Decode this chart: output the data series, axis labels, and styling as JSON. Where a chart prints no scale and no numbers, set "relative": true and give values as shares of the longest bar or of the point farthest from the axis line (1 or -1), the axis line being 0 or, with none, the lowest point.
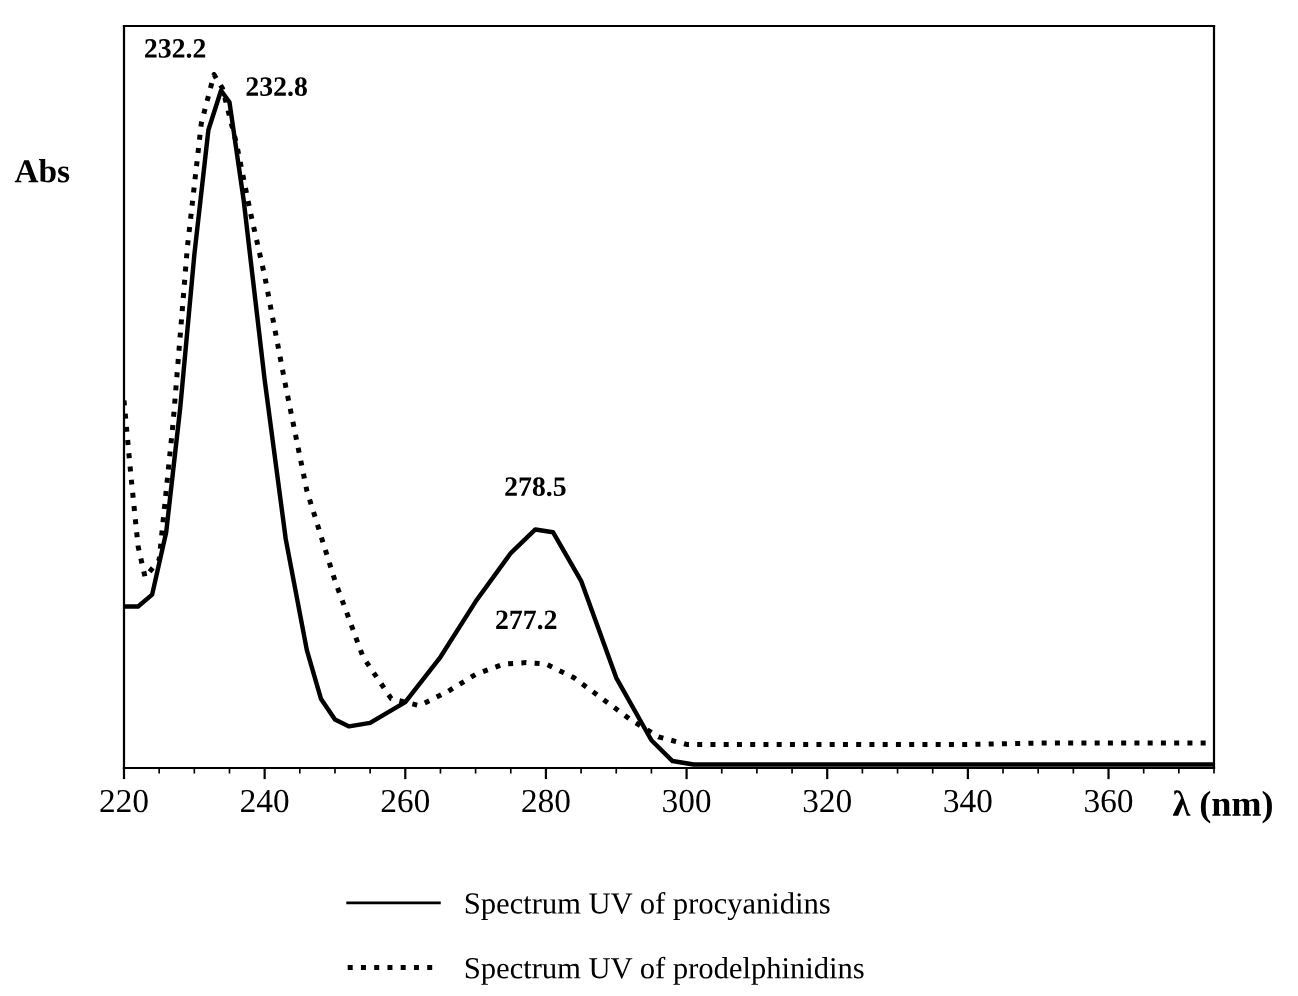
{
  "chart_data": {
    "type": "line",
    "relative": true,
    "xlabel": "λ (nm)",
    "ylabel": "Abs",
    "xlim": [
      220,
      375
    ],
    "xticks": [
      220,
      240,
      260,
      280,
      300,
      320,
      340,
      360
    ],
    "legend": "bottom",
    "grid": false,
    "series": [
      {
        "name": "Spectrum UV of procyanidins",
        "color": "#000000",
        "line_style": "solid",
        "x": [
          220,
          222,
          224,
          226,
          228,
          230,
          232,
          233.8,
          235,
          237,
          240,
          243,
          246,
          248,
          250,
          252,
          255,
          260,
          265,
          270,
          275,
          278.5,
          281,
          285,
          290,
          295,
          298,
          301,
          310,
          330,
          350,
          375
        ],
        "values": [
          0.233,
          0.233,
          0.25,
          0.34,
          0.52,
          0.74,
          0.92,
          0.977,
          0.96,
          0.82,
          0.56,
          0.33,
          0.17,
          0.1,
          0.07,
          0.06,
          0.065,
          0.095,
          0.16,
          0.24,
          0.31,
          0.344,
          0.34,
          0.27,
          0.13,
          0.04,
          0.01,
          0.005,
          0.005,
          0.005,
          0.005,
          0.005
        ]
      },
      {
        "name": "Spectrum UV of prodelphinidins",
        "color": "#000000",
        "line_style": "dotted",
        "x": [
          220,
          221,
          222,
          223,
          225,
          227,
          229,
          231,
          232.8,
          234,
          236,
          238,
          240,
          243,
          246,
          250,
          254,
          258,
          262,
          266,
          270,
          274,
          277.2,
          280,
          284,
          288,
          292,
          296,
          300,
          320,
          340,
          350,
          375
        ],
        "values": [
          0.53,
          0.42,
          0.32,
          0.275,
          0.3,
          0.5,
          0.75,
          0.93,
          1.0,
          0.98,
          0.9,
          0.8,
          0.71,
          0.55,
          0.4,
          0.27,
          0.16,
          0.1,
          0.09,
          0.11,
          0.135,
          0.15,
          0.152,
          0.15,
          0.13,
          0.1,
          0.07,
          0.045,
          0.034,
          0.034,
          0.034,
          0.036,
          0.036
        ]
      }
    ],
    "annotations": [
      {
        "text": "232.2",
        "x": 232.8,
        "y": 1.0
      },
      {
        "text": "232.8",
        "x": 233.8,
        "y": 0.977
      },
      {
        "text": "278.5",
        "x": 278.5,
        "y": 0.344
      },
      {
        "text": "277.2",
        "x": 277.2,
        "y": 0.152
      }
    ]
  }
}
